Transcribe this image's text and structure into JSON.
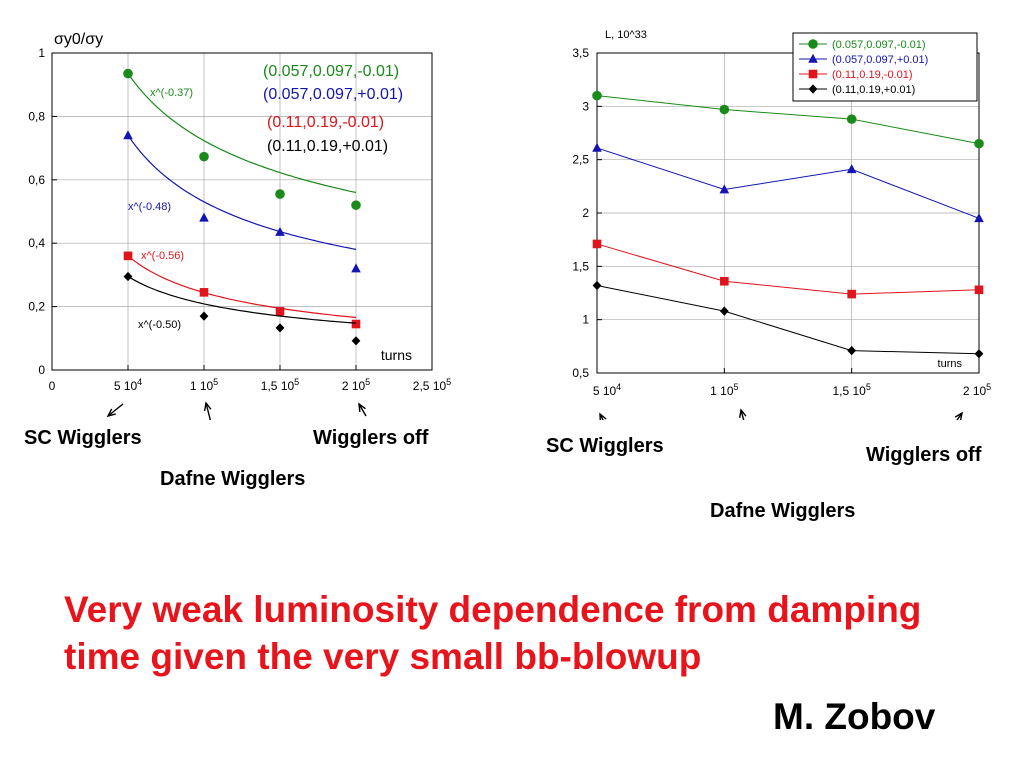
{
  "colors": {
    "green": "#1a8a1a",
    "blue": "#1414b4",
    "red": "#e0141c",
    "black": "#000000"
  },
  "chart_data": [
    {
      "type": "scatter",
      "title": "",
      "ylabel": "σy0/σy",
      "xlabel": "turns",
      "xlim": [
        0,
        250000
      ],
      "ylim": [
        0,
        1
      ],
      "x_tick_labels": [
        "0",
        "5 10^4",
        "1 10^5",
        "1,5 10^5",
        "2 10^5",
        "2,5 10^5"
      ],
      "y_tick_labels": [
        "0",
        "0,2",
        "0,4",
        "0,6",
        "0,8",
        "1"
      ],
      "grid": true,
      "legend": "top-right",
      "series": [
        {
          "name": "(0.057,0.097,-0.01)",
          "color": "#1a8a1a",
          "marker": "circle",
          "x": [
            50000,
            100000,
            150000,
            200000
          ],
          "y": [
            0.935,
            0.673,
            0.555,
            0.52
          ],
          "fit": {
            "label": "x^(-0.37)",
            "exponent": -0.37,
            "x_range": [
              50000,
              200000
            ]
          }
        },
        {
          "name": "(0.057,0.097,+0.01)",
          "color": "#1414b4",
          "marker": "triangle",
          "x": [
            50000,
            100000,
            150000,
            200000
          ],
          "y": [
            0.74,
            0.48,
            0.435,
            0.32
          ],
          "fit": {
            "label": "x^(-0.48)",
            "exponent": -0.48,
            "x_range": [
              50000,
              200000
            ]
          }
        },
        {
          "name": "(0.11,0.19,-0.01)",
          "color": "#e0141c",
          "marker": "square",
          "x": [
            50000,
            100000,
            150000,
            200000
          ],
          "y": [
            0.36,
            0.245,
            0.185,
            0.145
          ],
          "fit": {
            "label": "x^(-0.56)",
            "exponent": -0.56,
            "x_range": [
              50000,
              200000
            ]
          }
        },
        {
          "name": "(0.11,0.19,+0.01)",
          "color": "#000000",
          "marker": "diamond",
          "x": [
            50000,
            100000,
            150000,
            200000
          ],
          "y": [
            0.295,
            0.17,
            0.133,
            0.092
          ],
          "fit": {
            "label": "x^(-0.50)",
            "exponent": -0.5,
            "x_range": [
              50000,
              200000
            ]
          }
        }
      ]
    },
    {
      "type": "line",
      "title": "",
      "ylabel": "L, 10^33",
      "xlabel": "turns",
      "categories": [
        "5 10^4",
        "1 10^5",
        "1,5 10^5",
        "2 10^5"
      ],
      "ylim": [
        0.5,
        3.5
      ],
      "y_tick_labels": [
        "0,5",
        "1",
        "1,5",
        "2",
        "2,5",
        "3",
        "3,5"
      ],
      "grid": true,
      "legend": "top-right",
      "series": [
        {
          "name": "(0.057,0.097,-0.01)",
          "color": "#1a8a1a",
          "marker": "circle",
          "values": [
            3.1,
            2.97,
            2.88,
            2.65
          ]
        },
        {
          "name": "(0.057,0.097,+0.01)",
          "color": "#1414b4",
          "marker": "triangle",
          "values": [
            2.61,
            2.22,
            2.41,
            1.95
          ]
        },
        {
          "name": "(0.11,0.19,-0.01)",
          "color": "#e0141c",
          "marker": "square",
          "values": [
            1.71,
            1.36,
            1.24,
            1.28
          ]
        },
        {
          "name": "(0.11,0.19,+0.01)",
          "color": "#000000",
          "marker": "diamond",
          "values": [
            1.32,
            1.08,
            0.71,
            0.68
          ]
        }
      ]
    }
  ],
  "annotations": {
    "left": {
      "sc": "SC Wigglers",
      "dafne": "Dafne Wigglers",
      "off": "Wigglers off"
    },
    "right": {
      "sc": "SC Wigglers",
      "dafne": "Dafne Wigglers",
      "off": "Wigglers off"
    }
  },
  "conclusion": "Very weak luminosity dependence from damping time given the very small bb-blowup",
  "author": "M. Zobov"
}
